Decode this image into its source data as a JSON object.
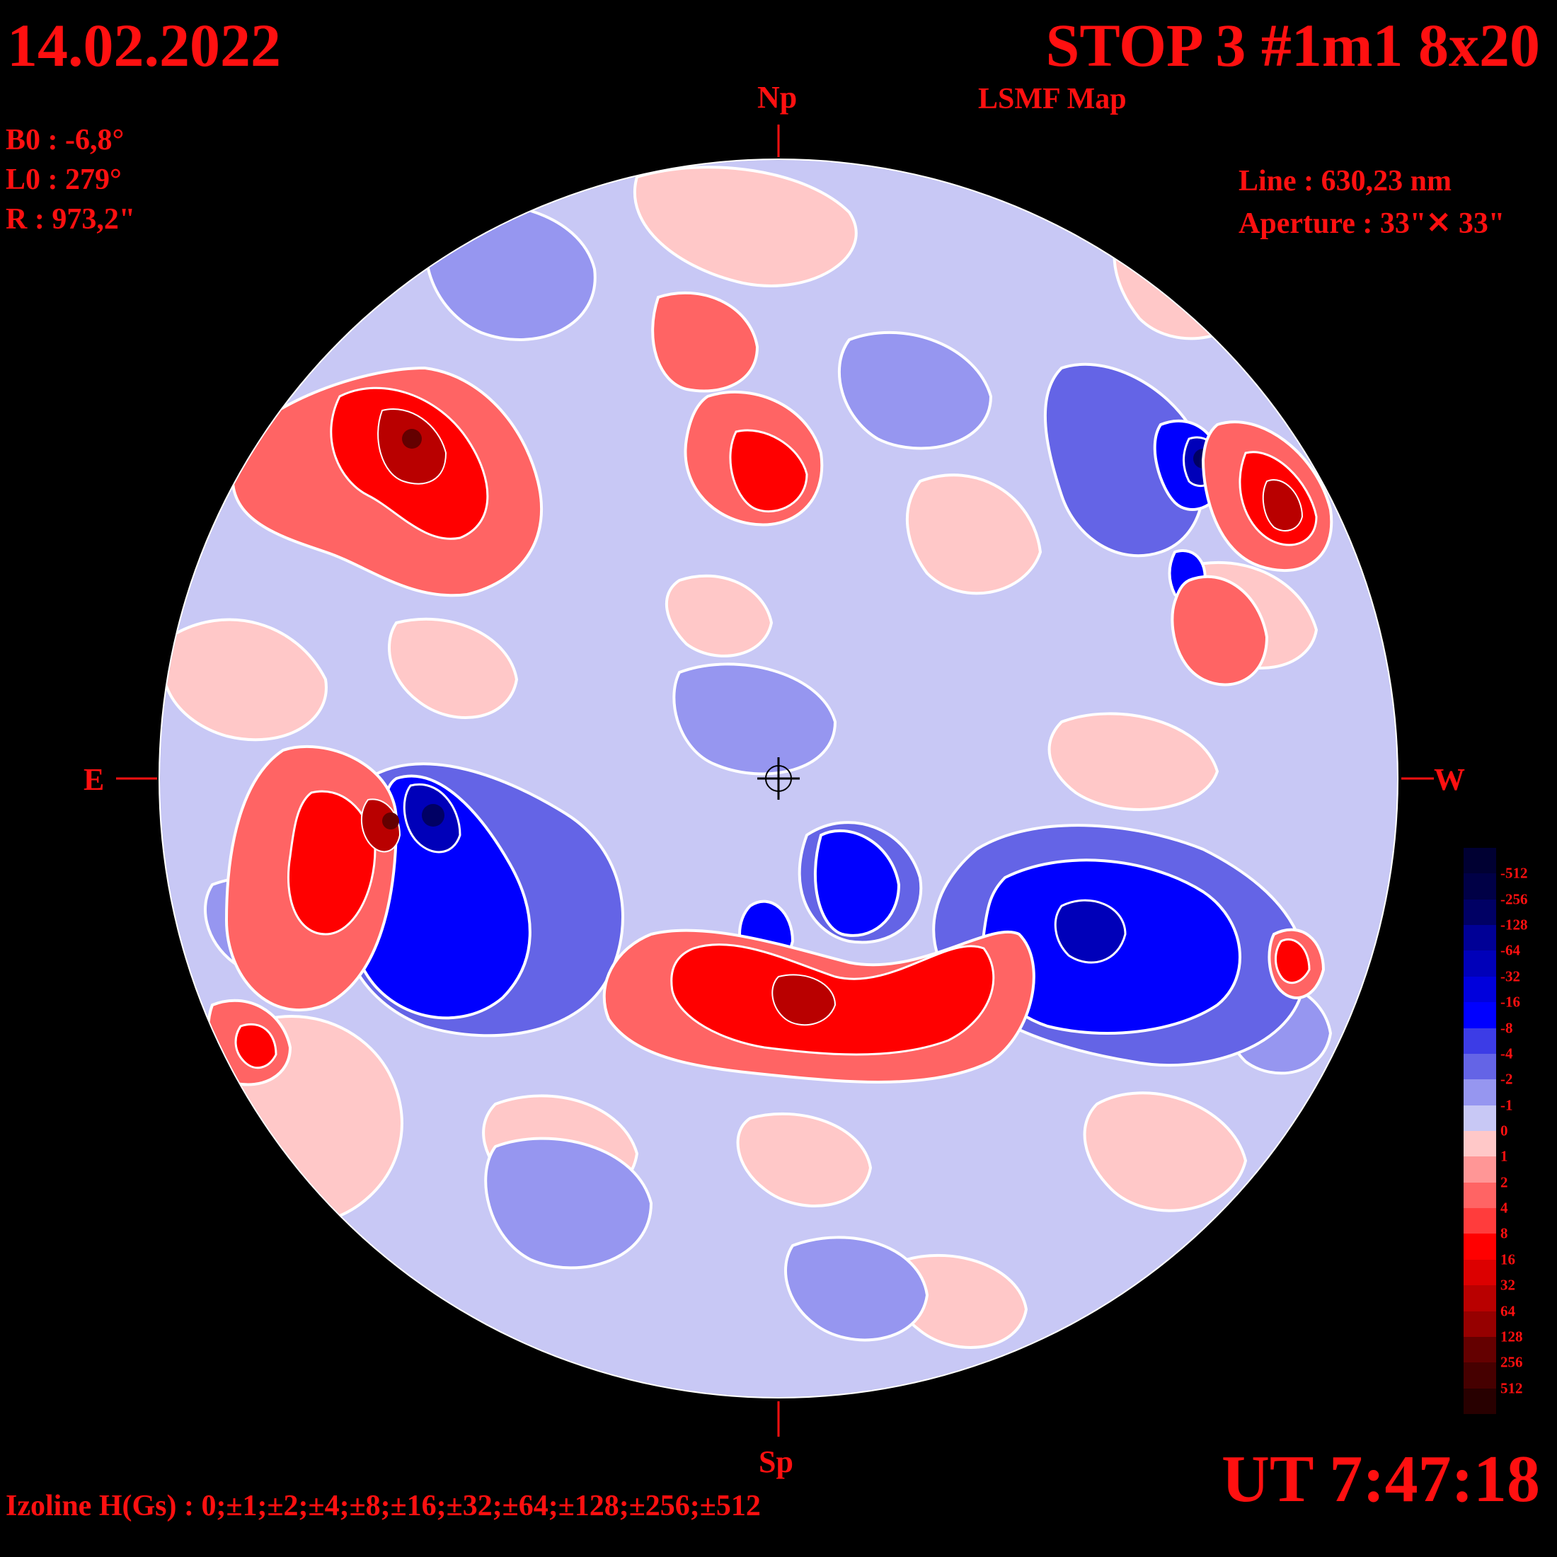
{
  "header": {
    "date": "14.02.2022",
    "title": "STOP 3 #1m1 8x20",
    "subtitle": "LSMF  Map"
  },
  "params": {
    "b0": "B0 : -6,8°",
    "l0": "L0 : 279°",
    "radius": "R  : 973,2\"",
    "line": "Line :  630,23 nm",
    "aperture": "Aperture : 33\"✕ 33\""
  },
  "directions": {
    "north": "Np",
    "south": "Sp",
    "east": "E",
    "west": "W"
  },
  "footer": {
    "time": "UT 7:47:18",
    "izoline": "Izoline H(Gs) : 0;±1;±2;±4;±8;±16;±32;±64;±128;±256;±512"
  },
  "colorbar": {
    "levels": [
      {
        "label": "-512",
        "color": "#000032"
      },
      {
        "label": "-256",
        "color": "#000046"
      },
      {
        "label": "-128",
        "color": "#000064"
      },
      {
        "label": "-64",
        "color": "#000096"
      },
      {
        "label": "-32",
        "color": "#0000b9"
      },
      {
        "label": "-16",
        "color": "#0000dc"
      },
      {
        "label": "-8",
        "color": "#0000ff"
      },
      {
        "label": "-4",
        "color": "#3c3ce6"
      },
      {
        "label": "-2",
        "color": "#6464e6"
      },
      {
        "label": "-1",
        "color": "#9696f0"
      },
      {
        "label": "0",
        "color": "#c8c8f5"
      },
      {
        "label": "1",
        "color": "#ffc8c8"
      },
      {
        "label": "2",
        "color": "#ff9696"
      },
      {
        "label": "4",
        "color": "#ff6464"
      },
      {
        "label": "8",
        "color": "#ff3c3c"
      },
      {
        "label": "16",
        "color": "#ff0000"
      },
      {
        "label": "32",
        "color": "#dc0000"
      },
      {
        "label": "64",
        "color": "#b90000"
      },
      {
        "label": "128",
        "color": "#960000"
      },
      {
        "label": "256",
        "color": "#640000"
      },
      {
        "label": "512",
        "color": "#460000"
      }
    ],
    "bottom_color": "#280000"
  },
  "map": {
    "background": "#c8c8f5",
    "outline": "#ffffff",
    "regions": [
      {
        "polarity": "positive",
        "peak": "strong",
        "area": "north-east lobe"
      },
      {
        "polarity": "negative",
        "peak": "strong",
        "area": "north-east pore"
      },
      {
        "polarity": "positive",
        "peak": "strong",
        "area": "north-center"
      },
      {
        "polarity": "negative",
        "peak": "strong",
        "area": "north-west pore"
      },
      {
        "polarity": "positive",
        "peak": "strong",
        "area": "north-west"
      },
      {
        "polarity": "positive",
        "peak": "strong",
        "area": "east"
      },
      {
        "polarity": "negative",
        "peak": "strong",
        "area": "south-east"
      },
      {
        "polarity": "positive",
        "peak": "strong",
        "area": "south-center"
      },
      {
        "polarity": "negative",
        "peak": "strong",
        "area": "south-center loop"
      },
      {
        "polarity": "negative",
        "peak": "strong",
        "area": "south-west"
      },
      {
        "polarity": "positive",
        "peak": "moderate",
        "area": "south-west spot"
      }
    ]
  }
}
